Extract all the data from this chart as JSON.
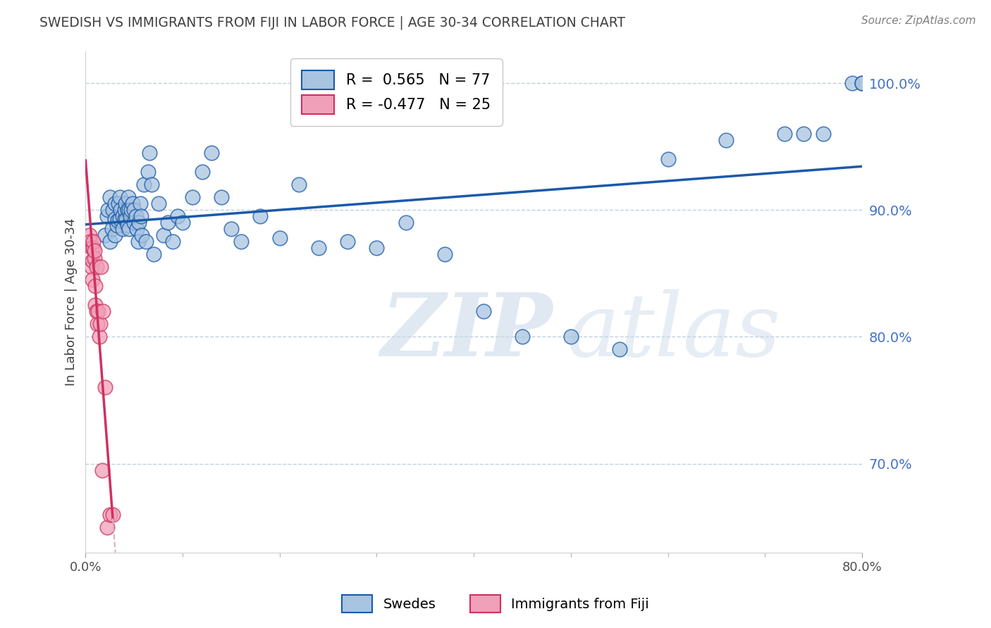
{
  "title": "SWEDISH VS IMMIGRANTS FROM FIJI IN LABOR FORCE | AGE 30-34 CORRELATION CHART",
  "source": "Source: ZipAtlas.com",
  "ylabel": "In Labor Force | Age 30-34",
  "watermark_zip": "ZIP",
  "watermark_atlas": "atlas",
  "blue_R": 0.565,
  "blue_N": 77,
  "pink_R": -0.477,
  "pink_N": 25,
  "xmin": 0.0,
  "xmax": 0.8,
  "ymin": 0.63,
  "ymax": 1.025,
  "right_yticks": [
    0.7,
    0.8,
    0.9,
    1.0
  ],
  "right_yticklabels": [
    "70.0%",
    "80.0%",
    "90.0%",
    "100.0%"
  ],
  "blue_color": "#a8c4e0",
  "blue_line_color": "#1a5aaa",
  "pink_color": "#f0a0b8",
  "pink_line_color": "#d03060",
  "pink_dash_color": "#dab0c0",
  "grid_color": "#c0d0e0",
  "title_color": "#404040",
  "right_label_color": "#4472c4",
  "legend_label_swedes": "Swedes",
  "legend_label_fiji": "Immigrants from Fiji",
  "blue_x": [
    0.02,
    0.022,
    0.023,
    0.025,
    0.025,
    0.027,
    0.028,
    0.03,
    0.03,
    0.03,
    0.032,
    0.033,
    0.034,
    0.035,
    0.035,
    0.036,
    0.038,
    0.038,
    0.04,
    0.04,
    0.041,
    0.042,
    0.043,
    0.043,
    0.044,
    0.045,
    0.045,
    0.046,
    0.047,
    0.048,
    0.05,
    0.05,
    0.052,
    0.053,
    0.054,
    0.055,
    0.056,
    0.057,
    0.058,
    0.06,
    0.062,
    0.064,
    0.066,
    0.068,
    0.07,
    0.075,
    0.08,
    0.085,
    0.09,
    0.095,
    0.1,
    0.11,
    0.12,
    0.13,
    0.14,
    0.15,
    0.16,
    0.18,
    0.2,
    0.22,
    0.24,
    0.27,
    0.3,
    0.33,
    0.37,
    0.41,
    0.45,
    0.5,
    0.55,
    0.6,
    0.66,
    0.72,
    0.74,
    0.76,
    0.79,
    0.8,
    0.8
  ],
  "blue_y": [
    0.88,
    0.895,
    0.9,
    0.875,
    0.91,
    0.885,
    0.9,
    0.88,
    0.893,
    0.905,
    0.888,
    0.892,
    0.905,
    0.893,
    0.91,
    0.9,
    0.885,
    0.895,
    0.893,
    0.9,
    0.905,
    0.893,
    0.888,
    0.9,
    0.91,
    0.885,
    0.9,
    0.895,
    0.9,
    0.905,
    0.9,
    0.89,
    0.895,
    0.885,
    0.875,
    0.89,
    0.905,
    0.895,
    0.88,
    0.92,
    0.875,
    0.93,
    0.945,
    0.92,
    0.865,
    0.905,
    0.88,
    0.89,
    0.875,
    0.895,
    0.89,
    0.91,
    0.93,
    0.945,
    0.91,
    0.885,
    0.875,
    0.895,
    0.878,
    0.92,
    0.87,
    0.875,
    0.87,
    0.89,
    0.865,
    0.82,
    0.8,
    0.8,
    0.79,
    0.94,
    0.955,
    0.96,
    0.96,
    0.96,
    1.0,
    1.0,
    1.0
  ],
  "pink_x": [
    0.004,
    0.005,
    0.006,
    0.006,
    0.007,
    0.007,
    0.008,
    0.008,
    0.009,
    0.009,
    0.01,
    0.01,
    0.011,
    0.011,
    0.012,
    0.013,
    0.014,
    0.015,
    0.016,
    0.017,
    0.018,
    0.02,
    0.022,
    0.025,
    0.028
  ],
  "pink_y": [
    0.88,
    0.875,
    0.855,
    0.87,
    0.845,
    0.86,
    0.87,
    0.875,
    0.862,
    0.868,
    0.84,
    0.825,
    0.82,
    0.855,
    0.81,
    0.82,
    0.8,
    0.81,
    0.855,
    0.695,
    0.82,
    0.76,
    0.65,
    0.66,
    0.66
  ]
}
